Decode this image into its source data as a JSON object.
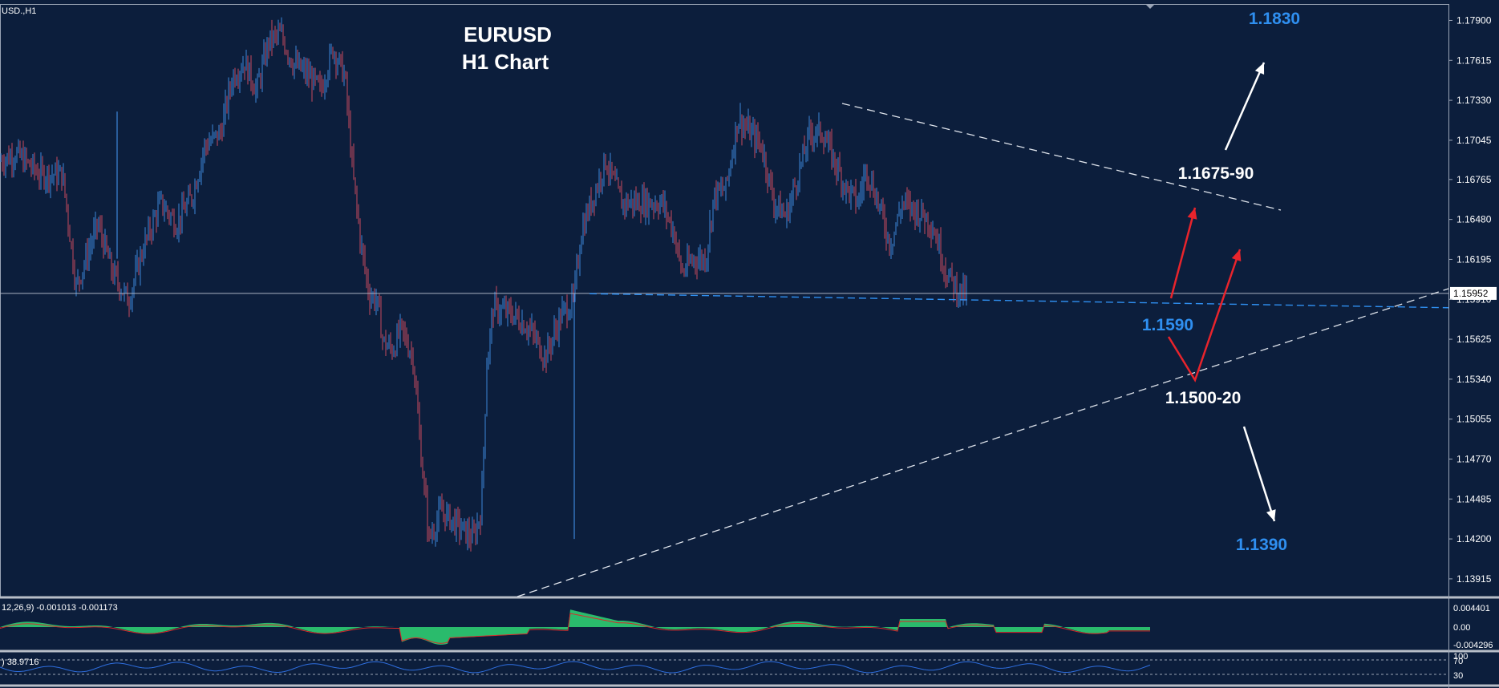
{
  "symbol_label": "USD.,H1",
  "chart_data": {
    "type": "candlestick",
    "title": "EURUSD",
    "subtitle": "H1 Chart",
    "y_ticks": [
      "1.17900",
      "1.17615",
      "1.17330",
      "1.17045",
      "1.16765",
      "1.16480",
      "1.16195",
      "1.15910",
      "1.15625",
      "1.15340",
      "1.15055",
      "1.14770",
      "1.14485",
      "1.14200",
      "1.13915"
    ],
    "ylim": [
      1.138,
      1.18
    ],
    "current_price": "1.15952",
    "annotations": {
      "target_up": "1.1830",
      "resistance": "1.1675-90",
      "pivot": "1.1590",
      "support": "1.1500-20",
      "target_down": "1.1390"
    },
    "price_path": [
      [
        0,
        1.169
      ],
      [
        20,
        1.1695
      ],
      [
        50,
        1.168
      ],
      [
        78,
        1.168
      ],
      [
        95,
        1.16
      ],
      [
        110,
        1.1625
      ],
      [
        122,
        1.1645
      ],
      [
        140,
        1.161
      ],
      [
        160,
        1.159
      ],
      [
        180,
        1.163
      ],
      [
        200,
        1.166
      ],
      [
        220,
        1.1645
      ],
      [
        240,
        1.1665
      ],
      [
        255,
        1.17
      ],
      [
        275,
        1.171
      ],
      [
        290,
        1.175
      ],
      [
        305,
        1.176
      ],
      [
        320,
        1.174
      ],
      [
        335,
        1.1775
      ],
      [
        350,
        1.178
      ],
      [
        365,
        1.176
      ],
      [
        385,
        1.175
      ],
      [
        400,
        1.174
      ],
      [
        415,
        1.177
      ],
      [
        430,
        1.175
      ],
      [
        440,
        1.168
      ],
      [
        450,
        1.163
      ],
      [
        460,
        1.1595
      ],
      [
        470,
        1.159
      ],
      [
        478,
        1.156
      ],
      [
        490,
        1.1555
      ],
      [
        500,
        1.157
      ],
      [
        515,
        1.155
      ],
      [
        525,
        1.148
      ],
      [
        535,
        1.142
      ],
      [
        550,
        1.144
      ],
      [
        570,
        1.143
      ],
      [
        590,
        1.142
      ],
      [
        600,
        1.144
      ],
      [
        607,
        1.1545
      ],
      [
        615,
        1.1585
      ],
      [
        640,
        1.158
      ],
      [
        660,
        1.157
      ],
      [
        680,
        1.155
      ],
      [
        700,
        1.158
      ],
      [
        715,
        1.159
      ],
      [
        725,
        1.164
      ],
      [
        740,
        1.1665
      ],
      [
        755,
        1.169
      ],
      [
        775,
        1.166
      ],
      [
        800,
        1.166
      ],
      [
        825,
        1.166
      ],
      [
        840,
        1.164
      ],
      [
        850,
        1.161
      ],
      [
        865,
        1.162
      ],
      [
        880,
        1.162
      ],
      [
        890,
        1.1665
      ],
      [
        905,
        1.167
      ],
      [
        920,
        1.172
      ],
      [
        935,
        1.171
      ],
      [
        950,
        1.17
      ],
      [
        965,
        1.166
      ],
      [
        980,
        1.165
      ],
      [
        995,
        1.168
      ],
      [
        1010,
        1.171
      ],
      [
        1025,
        1.171
      ],
      [
        1040,
        1.169
      ],
      [
        1055,
        1.167
      ],
      [
        1070,
        1.166
      ],
      [
        1080,
        1.1685
      ],
      [
        1095,
        1.166
      ],
      [
        1110,
        1.163
      ],
      [
        1125,
        1.166
      ],
      [
        1140,
        1.1655
      ],
      [
        1155,
        1.165
      ],
      [
        1165,
        1.164
      ],
      [
        1180,
        1.161
      ],
      [
        1195,
        1.1597
      ],
      [
        1205,
        1.1595
      ]
    ],
    "macd": {
      "label": "12,26,9) -0.001013 -0.001173",
      "ticks": [
        "0.004401",
        "0.00",
        "-0.004296"
      ]
    },
    "oscillator": {
      "label": ") 38.9716",
      "ticks": [
        "100",
        "70",
        "30"
      ]
    }
  }
}
